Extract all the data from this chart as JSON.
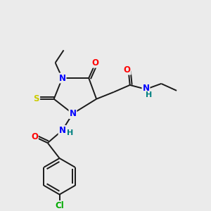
{
  "background_color": "#ebebeb",
  "bond_color": "#1a1a1a",
  "atom_colors": {
    "N": "#0000ff",
    "O": "#ff0000",
    "S": "#cccc00",
    "Cl": "#00aa00",
    "C": "#1a1a1a",
    "H": "#008080"
  },
  "figsize": [
    3.0,
    3.0
  ],
  "dpi": 100,
  "lw": 1.4,
  "fs": 8.5
}
